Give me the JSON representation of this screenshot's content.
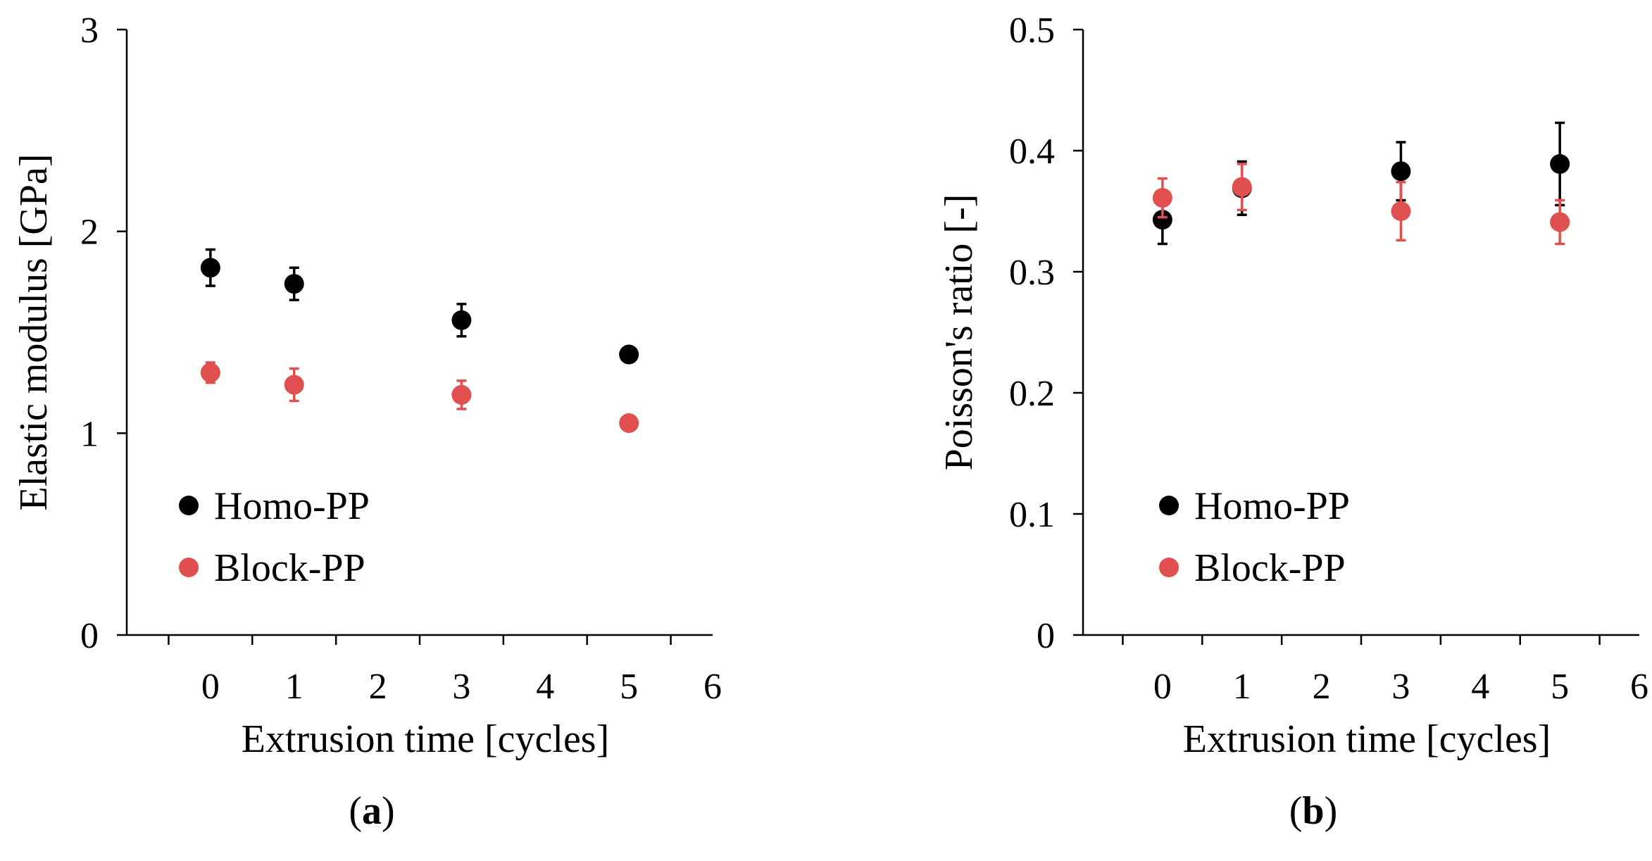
{
  "chart_data": [
    {
      "type": "scatter",
      "panel_label": "a",
      "caption_open": "(",
      "caption_close": ")",
      "xlabel": "Extrusion time [cycles]",
      "ylabel": "Elastic modulus [GPa]",
      "xlim": [
        -1,
        6
      ],
      "ylim": [
        0,
        3
      ],
      "xticks": [
        0,
        1,
        2,
        3,
        4,
        5,
        6
      ],
      "yticks": [
        0,
        1,
        2,
        3
      ],
      "xtick_labels": [
        "0",
        "1",
        "2",
        "3",
        "4",
        "5",
        "6"
      ],
      "ytick_labels": [
        "0",
        "1",
        "2",
        "3"
      ],
      "grid": false,
      "legend_position": "bottom-left",
      "series": [
        {
          "name": "Homo-PP",
          "color": "#000000",
          "x": [
            0,
            1,
            3,
            5
          ],
          "y": [
            1.82,
            1.74,
            1.56,
            1.39
          ],
          "err": [
            0.09,
            0.08,
            0.08,
            0.0
          ]
        },
        {
          "name": "Block-PP",
          "color": "#e05050",
          "x": [
            0,
            1,
            3,
            5
          ],
          "y": [
            1.3,
            1.24,
            1.19,
            1.05
          ],
          "err": [
            0.05,
            0.08,
            0.07,
            0.0
          ]
        }
      ]
    },
    {
      "type": "scatter",
      "panel_label": "b",
      "caption_open": "(",
      "caption_close": ")",
      "xlabel": "Extrusion time [cycles]",
      "ylabel": "Poisson's ratio [-]",
      "xlim": [
        -1,
        6
      ],
      "ylim": [
        0,
        0.5
      ],
      "xticks": [
        0,
        1,
        2,
        3,
        4,
        5,
        6
      ],
      "yticks": [
        0,
        0.1,
        0.2,
        0.3,
        0.4,
        0.5
      ],
      "xtick_labels": [
        "0",
        "1",
        "2",
        "3",
        "4",
        "5",
        "6"
      ],
      "ytick_labels": [
        "0",
        "0.1",
        "0.2",
        "0.3",
        "0.4",
        "0.5"
      ],
      "grid": false,
      "legend_position": "bottom-left",
      "series": [
        {
          "name": "Homo-PP",
          "color": "#000000",
          "x": [
            0,
            1,
            3,
            5
          ],
          "y": [
            0.343,
            0.369,
            0.383,
            0.389
          ],
          "err": [
            0.02,
            0.022,
            0.024,
            0.034
          ]
        },
        {
          "name": "Block-PP",
          "color": "#e05050",
          "x": [
            0,
            1,
            3,
            5
          ],
          "y": [
            0.361,
            0.37,
            0.35,
            0.341
          ],
          "err": [
            0.016,
            0.019,
            0.024,
            0.018
          ]
        }
      ]
    }
  ]
}
